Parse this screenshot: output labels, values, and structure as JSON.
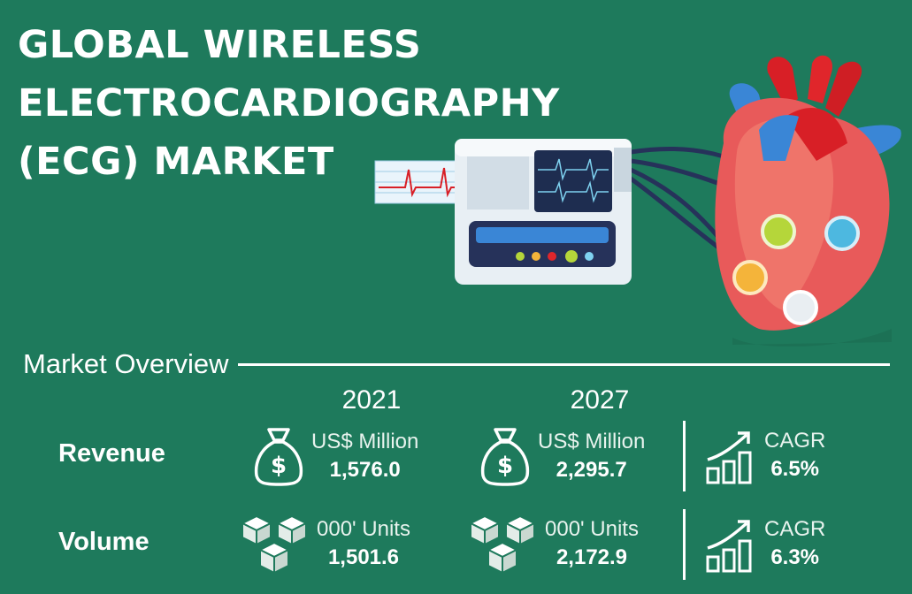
{
  "title": {
    "line1": "GLOBAL WIRELESS",
    "line2": "ELECTROCARDIOGRAPHY",
    "line3": "(ECG) MARKET"
  },
  "overview": {
    "heading": "Market Overview",
    "year_start": "2021",
    "year_end": "2027",
    "revenue": {
      "label": "Revenue",
      "unit_start": "US$ Million",
      "value_start": "1,576.0",
      "unit_end": "US$ Million",
      "value_end": "2,295.7",
      "cagr_label": "CAGR",
      "cagr_value": "6.5%"
    },
    "volume": {
      "label": "Volume",
      "unit_start": "000' Units",
      "value_start": "1,501.6",
      "unit_end": "000' Units",
      "value_end": "2,172.9",
      "cagr_label": "CAGR",
      "cagr_value": "6.3%"
    }
  },
  "colors": {
    "background": "#1e7a5c",
    "text": "#ffffff"
  },
  "icons": [
    "ecg-machine-icon",
    "heart-icon",
    "money-bag-icon",
    "cubes-icon",
    "growth-chart-icon"
  ]
}
